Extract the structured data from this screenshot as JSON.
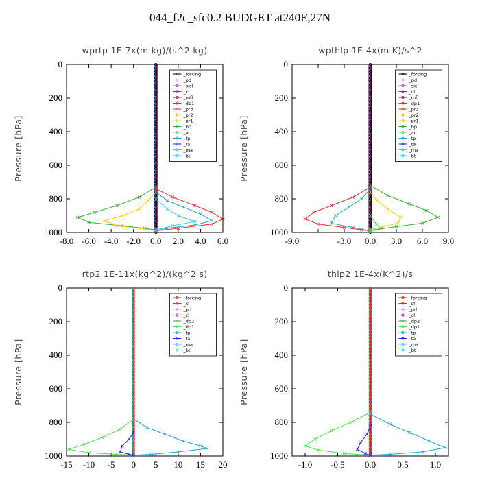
{
  "title": "044_f2c_sfc0.2  BUDGET at240E,27N",
  "colors": {
    "forcing": "#000000",
    "pd": "#c8a0ff",
    "sicl": "#9a40ff",
    "cl": "#c000c0",
    "mfl": "#8a1040",
    "dp1": "#ff2020",
    "pr3": "#e83030",
    "pr2": "#ff9010",
    "pr1": "#ffd000",
    "bp": "#30b030",
    "ac": "#50e050",
    "tp": "#20a0d0",
    "ta": "#2020ff",
    "ma": "#40c0ff",
    "bt": "#00e0ff",
    "sf": "#e03020",
    "dp2": "#30b030",
    "forcing_red": "#d02020"
  },
  "chart_data": [
    {
      "type": "line",
      "title": "wprtp   1E-7x(m kg)/(s^2 kg)",
      "ylabel": "Pressure [hPa]",
      "xlim": [
        -8,
        6
      ],
      "ylim": [
        1000,
        0
      ],
      "y_inverted": true,
      "xticks": [
        -8,
        -6,
        -4,
        -2,
        0,
        2,
        4,
        6
      ],
      "xtick_labels": [
        "-8.0",
        "-6.0",
        "-4.0",
        "-2.0",
        "0.0",
        "2.0",
        "4.0",
        "6.0"
      ],
      "yticks": [
        0,
        200,
        400,
        600,
        800,
        1000
      ],
      "ytick_labels": [
        "0",
        "200",
        "400",
        "600",
        "800",
        "1000"
      ],
      "legend": [
        "_forcing",
        "_pd",
        "_sicl",
        "_cl",
        "_mfl",
        "_dp1",
        "_pr3",
        "_pr2",
        "_pr1",
        "_bp",
        "_ac",
        "_tp",
        "_ta",
        "_ma",
        "_bt"
      ],
      "legend_keys": [
        "forcing",
        "pd",
        "sicl",
        "cl",
        "mfl",
        "dp1",
        "pr3",
        "pr2",
        "pr1",
        "bp",
        "ac",
        "tp",
        "ta",
        "ma",
        "bt"
      ],
      "legend_position": "top-right",
      "series": [
        {
          "key": "bp",
          "points": [
            [
              0,
              730
            ],
            [
              -1.5,
              790
            ],
            [
              -3.5,
              840
            ],
            [
              -5.5,
              880
            ],
            [
              -7,
              910
            ],
            [
              -6,
              940
            ],
            [
              -3,
              960
            ],
            [
              -1,
              975
            ],
            [
              0,
              985
            ]
          ]
        },
        {
          "key": "pr1",
          "points": [
            [
              0,
              760
            ],
            [
              -0.7,
              810
            ],
            [
              -1.5,
              860
            ],
            [
              -3,
              900
            ],
            [
              -4.6,
              930
            ],
            [
              -3.5,
              960
            ],
            [
              -1.5,
              975
            ],
            [
              0,
              990
            ]
          ]
        },
        {
          "key": "dp1",
          "points": [
            [
              0,
              740
            ],
            [
              1.5,
              790
            ],
            [
              3.5,
              840
            ],
            [
              5,
              880
            ],
            [
              6,
              920
            ],
            [
              5,
              950
            ],
            [
              2,
              975
            ],
            [
              0,
              990
            ]
          ]
        },
        {
          "key": "tp",
          "points": [
            [
              0,
              760
            ],
            [
              1,
              810
            ],
            [
              2.5,
              850
            ],
            [
              4,
              890
            ],
            [
              5,
              930
            ],
            [
              3.5,
              955
            ],
            [
              1,
              975
            ],
            [
              0,
              990
            ]
          ]
        },
        {
          "key": "ma",
          "points": [
            [
              0,
              800
            ],
            [
              1,
              860
            ],
            [
              2,
              900
            ],
            [
              3.5,
              935
            ],
            [
              1.5,
              960
            ],
            [
              0,
              985
            ]
          ]
        },
        {
          "key": "forcing",
          "points": [
            [
              0,
              0
            ],
            [
              0,
              1000
            ]
          ]
        }
      ]
    },
    {
      "type": "line",
      "title": "wpthlp   1E-4x(m K)/s^2",
      "ylabel": "Pressure [hPa]",
      "xlim": [
        -9,
        9
      ],
      "ylim": [
        1000,
        0
      ],
      "y_inverted": true,
      "xticks": [
        -9,
        -6,
        -3,
        0,
        3,
        6,
        9
      ],
      "xtick_labels": [
        "-9.0",
        "",
        "-3.0",
        "0.0",
        "3.0",
        "6.0",
        "9.0"
      ],
      "yticks": [
        0,
        200,
        400,
        600,
        800,
        1000
      ],
      "ytick_labels": [
        "0",
        "200",
        "400",
        "600",
        "800",
        "1000"
      ],
      "legend": [
        "_forcing",
        "_pd",
        "_sicl",
        "_cl",
        "_mfl",
        "_dp1",
        "_pr3",
        "_pr2",
        "_pr1",
        "_bp",
        "_ac",
        "_tp",
        "_ta",
        "_ma",
        "_bt"
      ],
      "legend_keys": [
        "forcing",
        "pd",
        "sicl",
        "cl",
        "mfl",
        "dp1",
        "pr3",
        "pr2",
        "pr1",
        "bp",
        "ac",
        "tp",
        "ta",
        "ma",
        "bt"
      ],
      "legend_position": "top-right",
      "series": [
        {
          "key": "bp",
          "points": [
            [
              0,
              720
            ],
            [
              2,
              780
            ],
            [
              4.5,
              830
            ],
            [
              6.5,
              870
            ],
            [
              7.8,
              910
            ],
            [
              6,
              945
            ],
            [
              3,
              965
            ],
            [
              1,
              980
            ],
            [
              0,
              990
            ]
          ]
        },
        {
          "key": "pr1",
          "points": [
            [
              0,
              760
            ],
            [
              0.8,
              810
            ],
            [
              2,
              860
            ],
            [
              3.5,
              910
            ],
            [
              3.2,
              945
            ],
            [
              1.5,
              965
            ],
            [
              0,
              985
            ]
          ]
        },
        {
          "key": "dp1",
          "points": [
            [
              0,
              730
            ],
            [
              -2,
              790
            ],
            [
              -4.5,
              840
            ],
            [
              -6.5,
              880
            ],
            [
              -7.5,
              920
            ],
            [
              -6,
              950
            ],
            [
              -3,
              970
            ],
            [
              -1,
              985
            ],
            [
              0,
              990
            ]
          ]
        },
        {
          "key": "tp",
          "points": [
            [
              0,
              740
            ],
            [
              -1,
              800
            ],
            [
              -2.5,
              850
            ],
            [
              -4,
              900
            ],
            [
              -4.5,
              945
            ],
            [
              -2,
              970
            ],
            [
              0,
              990
            ]
          ]
        },
        {
          "key": "ac",
          "points": [
            [
              0,
              900
            ],
            [
              0.7,
              950
            ],
            [
              1.2,
              975
            ],
            [
              0.5,
              985
            ],
            [
              0,
              995
            ]
          ]
        },
        {
          "key": "pd",
          "points": [
            [
              0,
              0
            ],
            [
              0,
              1000
            ]
          ]
        }
      ]
    },
    {
      "type": "line",
      "title": "rtp2   1E-11x(kg^2)/(kg^2 s)",
      "ylabel": "Pressure [hPa]",
      "xlim": [
        -15,
        20
      ],
      "ylim": [
        1000,
        0
      ],
      "y_inverted": true,
      "xticks": [
        -15,
        -10,
        -5,
        0,
        5,
        10,
        15,
        20
      ],
      "xtick_labels": [
        "-15",
        "-10",
        "-5",
        "0",
        "5",
        "10",
        "15",
        "20"
      ],
      "yticks": [
        0,
        200,
        400,
        600,
        800,
        1000
      ],
      "ytick_labels": [
        "0",
        "200",
        "400",
        "600",
        "800",
        "1000"
      ],
      "legend": [
        "_forcing",
        "_sf",
        "_pd",
        "_cl",
        "_dp2",
        "_dp1",
        "_tp",
        "_ta",
        "_ma",
        "_bt"
      ],
      "legend_keys": [
        "forcing_red",
        "sf",
        "pd",
        "cl",
        "dp2",
        "ac",
        "tp",
        "ta",
        "ma",
        "bt"
      ],
      "legend_position": "top-right",
      "series": [
        {
          "key": "ac",
          "points": [
            [
              0,
              780
            ],
            [
              -3,
              840
            ],
            [
              -7,
              890
            ],
            [
              -11,
              930
            ],
            [
              -14.5,
              960
            ],
            [
              -10,
              980
            ],
            [
              -4,
              990
            ],
            [
              0,
              995
            ]
          ]
        },
        {
          "key": "tp",
          "points": [
            [
              0,
              780
            ],
            [
              3,
              830
            ],
            [
              7,
              870
            ],
            [
              11,
              910
            ],
            [
              15,
              940
            ],
            [
              16.5,
              955
            ],
            [
              10,
              975
            ],
            [
              4,
              990
            ],
            [
              0,
              995
            ]
          ]
        },
        {
          "key": "ta",
          "points": [
            [
              0,
              860
            ],
            [
              -1,
              900
            ],
            [
              -2.5,
              940
            ],
            [
              -3,
              975
            ],
            [
              -1,
              990
            ],
            [
              0,
              995
            ]
          ]
        },
        {
          "key": "forcing_red",
          "points": [
            [
              0,
              0
            ],
            [
              0,
              1000
            ]
          ]
        }
      ]
    },
    {
      "type": "line",
      "title": "thlp2   1E-4x(K^2)/s",
      "ylabel": "Pressure [hPa]",
      "xlim": [
        -1.2,
        1.2
      ],
      "ylim": [
        1000,
        0
      ],
      "y_inverted": true,
      "xticks": [
        -1.0,
        -0.5,
        0,
        0.5,
        1.0
      ],
      "xtick_labels": [
        "-1.0",
        "-0.5",
        "0.0",
        "0.5",
        "1.0"
      ],
      "yticks": [
        0,
        200,
        400,
        600,
        800,
        1000
      ],
      "ytick_labels": [
        "0",
        "200",
        "400",
        "600",
        "800",
        "1000"
      ],
      "legend": [
        "_forcing",
        "_sf",
        "_pd",
        "_cl",
        "_dp2",
        "_dp1",
        "_tp",
        "_ta",
        "_ma",
        "_bt"
      ],
      "legend_keys": [
        "forcing_red",
        "sf",
        "pd",
        "cl",
        "dp2",
        "ac",
        "tp",
        "ta",
        "ma",
        "bt"
      ],
      "legend_position": "top-right",
      "series": [
        {
          "key": "ac",
          "points": [
            [
              0,
              740
            ],
            [
              -0.3,
              800
            ],
            [
              -0.6,
              850
            ],
            [
              -0.85,
              900
            ],
            [
              -1.0,
              940
            ],
            [
              -0.8,
              965
            ],
            [
              -0.4,
              985
            ],
            [
              0,
              995
            ]
          ]
        },
        {
          "key": "tp",
          "points": [
            [
              0,
              750
            ],
            [
              0.3,
              810
            ],
            [
              0.6,
              860
            ],
            [
              0.9,
              910
            ],
            [
              1.15,
              950
            ],
            [
              0.8,
              975
            ],
            [
              0.3,
              990
            ],
            [
              0,
              995
            ]
          ]
        },
        {
          "key": "ta",
          "points": [
            [
              0,
              820
            ],
            [
              -0.05,
              870
            ],
            [
              -0.15,
              920
            ],
            [
              -0.2,
              960
            ],
            [
              -0.08,
              985
            ],
            [
              0,
              995
            ]
          ]
        },
        {
          "key": "forcing_red",
          "points": [
            [
              0,
              0
            ],
            [
              0,
              1000
            ]
          ]
        }
      ]
    }
  ]
}
